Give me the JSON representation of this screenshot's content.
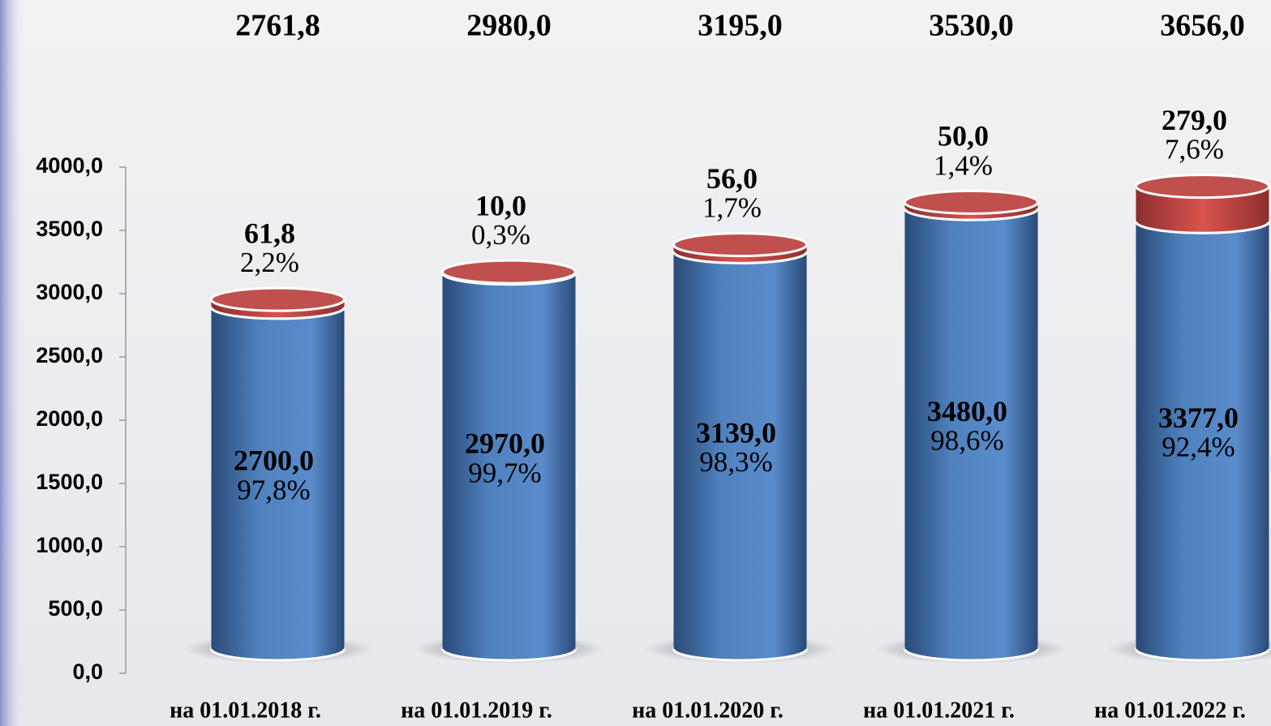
{
  "chart_data": {
    "type": "stacked-cylinder",
    "categories": [
      "на 01.01.2018 г.",
      "на 01.01.2019 г.",
      "на 01.01.2020 г.",
      "на 01.01.2021 г.",
      "на 01.01.2022 г."
    ],
    "total_labels": [
      "2761,8",
      "2980,0",
      "3195,0",
      "3530,0",
      "3656,0"
    ],
    "series": [
      {
        "color": "#4f81bd",
        "values": [
          2700,
          2970,
          3139,
          3480,
          3377
        ],
        "value_labels": [
          "2700,0",
          "2970,0",
          "3139,0",
          "3480,0",
          "3377,0"
        ],
        "shares": [
          "97,8%",
          "99,7%",
          "98,3%",
          "98,6%",
          "92,4%"
        ]
      },
      {
        "color": "#c0504d",
        "values": [
          61.8,
          10,
          56,
          50,
          279
        ],
        "value_labels": [
          "61,8",
          "10,0",
          "56,0",
          "50,0",
          "279,0"
        ],
        "shares": [
          "2,2%",
          "0,3%",
          "1,7%",
          "1,4%",
          "7,6%"
        ]
      }
    ],
    "ylim": [
      0,
      4000
    ],
    "yticks": [
      {
        "value": 0,
        "label": "0,0"
      },
      {
        "value": 500,
        "label": "500,0"
      },
      {
        "value": 1000,
        "label": "1000,0"
      },
      {
        "value": 1500,
        "label": "1500,0"
      },
      {
        "value": 2000,
        "label": "2000,0"
      },
      {
        "value": 2500,
        "label": "2500,0"
      },
      {
        "value": 3000,
        "label": "3000,0"
      },
      {
        "value": 3500,
        "label": "3500,0"
      },
      {
        "value": 4000,
        "label": "4000,0"
      }
    ]
  }
}
